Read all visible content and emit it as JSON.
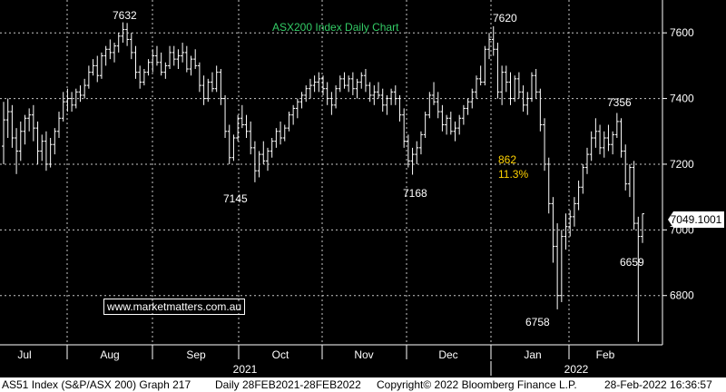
{
  "chart_data": {
    "type": "ohlc",
    "title": "ASX200 Index Daily Chart",
    "ylim": [
      6650,
      7700
    ],
    "yticks": [
      6800,
      7000,
      7200,
      7400,
      7600
    ],
    "x_months": [
      "Jul",
      "Aug",
      "Sep",
      "Oct",
      "Nov",
      "Dec",
      "Jan",
      "Feb"
    ],
    "x_years": [
      "2021",
      "2022"
    ],
    "grid": true,
    "last_price": "7049.1001",
    "annotations": [
      {
        "label": "7632",
        "value": 7632
      },
      {
        "label": "7145",
        "value": 7145
      },
      {
        "label": "7168",
        "value": 7168
      },
      {
        "label": "7620",
        "value": 7620
      },
      {
        "label": "862",
        "value": null
      },
      {
        "label": "11.3%",
        "value": null
      },
      {
        "label": "7356",
        "value": 7356
      },
      {
        "label": "6659",
        "value": 6659
      },
      {
        "label": "6758",
        "value": 6758
      }
    ],
    "series": [
      {
        "values": [
          [
            7255,
            7390,
            7200,
            7335
          ],
          [
            7335,
            7400,
            7280,
            7360
          ],
          [
            7360,
            7380,
            7250,
            7280
          ],
          [
            7280,
            7310,
            7170,
            7240
          ],
          [
            7240,
            7330,
            7210,
            7300
          ],
          [
            7300,
            7350,
            7260,
            7340
          ],
          [
            7340,
            7370,
            7300,
            7350
          ],
          [
            7350,
            7380,
            7270,
            7310
          ],
          [
            7310,
            7330,
            7200,
            7240
          ],
          [
            7240,
            7290,
            7210,
            7270
          ],
          [
            7270,
            7300,
            7180,
            7200
          ],
          [
            7200,
            7280,
            7190,
            7260
          ],
          [
            7260,
            7310,
            7230,
            7300
          ],
          [
            7300,
            7360,
            7280,
            7340
          ],
          [
            7340,
            7420,
            7330,
            7390
          ],
          [
            7390,
            7430,
            7360,
            7400
          ],
          [
            7400,
            7420,
            7360,
            7380
          ],
          [
            7380,
            7430,
            7370,
            7420
          ],
          [
            7420,
            7440,
            7390,
            7410
          ],
          [
            7410,
            7460,
            7400,
            7440
          ],
          [
            7440,
            7500,
            7430,
            7480
          ],
          [
            7480,
            7520,
            7470,
            7500
          ],
          [
            7500,
            7530,
            7450,
            7470
          ],
          [
            7470,
            7540,
            7460,
            7530
          ],
          [
            7530,
            7560,
            7500,
            7550
          ],
          [
            7550,
            7580,
            7520,
            7540
          ],
          [
            7540,
            7570,
            7510,
            7560
          ],
          [
            7560,
            7600,
            7540,
            7590
          ],
          [
            7590,
            7632,
            7570,
            7610
          ],
          [
            7610,
            7630,
            7560,
            7580
          ],
          [
            7580,
            7600,
            7520,
            7540
          ],
          [
            7540,
            7560,
            7460,
            7480
          ],
          [
            7480,
            7500,
            7430,
            7450
          ],
          [
            7450,
            7490,
            7440,
            7480
          ],
          [
            7480,
            7520,
            7470,
            7510
          ],
          [
            7510,
            7550,
            7480,
            7530
          ],
          [
            7530,
            7560,
            7500,
            7510
          ],
          [
            7510,
            7540,
            7470,
            7480
          ],
          [
            7480,
            7510,
            7460,
            7500
          ],
          [
            7500,
            7560,
            7490,
            7540
          ],
          [
            7540,
            7560,
            7500,
            7520
          ],
          [
            7520,
            7550,
            7490,
            7530
          ],
          [
            7530,
            7570,
            7510,
            7540
          ],
          [
            7540,
            7560,
            7480,
            7490
          ],
          [
            7490,
            7530,
            7470,
            7520
          ],
          [
            7520,
            7550,
            7490,
            7500
          ],
          [
            7500,
            7510,
            7420,
            7440
          ],
          [
            7440,
            7470,
            7380,
            7400
          ],
          [
            7400,
            7460,
            7390,
            7450
          ],
          [
            7450,
            7480,
            7420,
            7430
          ],
          [
            7430,
            7500,
            7420,
            7480
          ],
          [
            7480,
            7490,
            7380,
            7400
          ],
          [
            7400,
            7410,
            7280,
            7300
          ],
          [
            7300,
            7320,
            7200,
            7220
          ],
          [
            7220,
            7290,
            7210,
            7280
          ],
          [
            7280,
            7350,
            7270,
            7340
          ],
          [
            7340,
            7380,
            7310,
            7320
          ],
          [
            7320,
            7350,
            7280,
            7300
          ],
          [
            7300,
            7330,
            7230,
            7250
          ],
          [
            7250,
            7270,
            7145,
            7180
          ],
          [
            7180,
            7240,
            7160,
            7230
          ],
          [
            7230,
            7270,
            7200,
            7210
          ],
          [
            7210,
            7250,
            7180,
            7240
          ],
          [
            7240,
            7280,
            7220,
            7270
          ],
          [
            7270,
            7310,
            7250,
            7300
          ],
          [
            7300,
            7330,
            7260,
            7280
          ],
          [
            7280,
            7320,
            7270,
            7310
          ],
          [
            7310,
            7360,
            7300,
            7350
          ],
          [
            7350,
            7380,
            7320,
            7370
          ],
          [
            7370,
            7400,
            7340,
            7390
          ],
          [
            7390,
            7420,
            7370,
            7410
          ],
          [
            7410,
            7440,
            7390,
            7430
          ],
          [
            7430,
            7460,
            7400,
            7440
          ],
          [
            7440,
            7470,
            7420,
            7450
          ],
          [
            7450,
            7480,
            7420,
            7460
          ],
          [
            7460,
            7470,
            7410,
            7430
          ],
          [
            7430,
            7450,
            7380,
            7400
          ],
          [
            7400,
            7420,
            7350,
            7380
          ],
          [
            7380,
            7440,
            7370,
            7430
          ],
          [
            7430,
            7470,
            7420,
            7460
          ],
          [
            7460,
            7480,
            7430,
            7440
          ],
          [
            7440,
            7470,
            7420,
            7460
          ],
          [
            7460,
            7480,
            7410,
            7430
          ],
          [
            7430,
            7460,
            7400,
            7450
          ],
          [
            7450,
            7480,
            7430,
            7470
          ],
          [
            7470,
            7490,
            7420,
            7440
          ],
          [
            7440,
            7450,
            7390,
            7410
          ],
          [
            7410,
            7440,
            7380,
            7420
          ],
          [
            7420,
            7450,
            7400,
            7410
          ],
          [
            7410,
            7430,
            7360,
            7380
          ],
          [
            7380,
            7410,
            7350,
            7400
          ],
          [
            7400,
            7430,
            7380,
            7420
          ],
          [
            7420,
            7440,
            7380,
            7400
          ],
          [
            7400,
            7410,
            7330,
            7350
          ],
          [
            7350,
            7370,
            7250,
            7270
          ],
          [
            7270,
            7290,
            7190,
            7210
          ],
          [
            7210,
            7250,
            7168,
            7230
          ],
          [
            7230,
            7270,
            7200,
            7250
          ],
          [
            7250,
            7300,
            7230,
            7290
          ],
          [
            7290,
            7360,
            7280,
            7350
          ],
          [
            7350,
            7420,
            7340,
            7410
          ],
          [
            7410,
            7450,
            7380,
            7390
          ],
          [
            7390,
            7420,
            7340,
            7360
          ],
          [
            7360,
            7380,
            7300,
            7320
          ],
          [
            7320,
            7350,
            7290,
            7340
          ],
          [
            7340,
            7360,
            7290,
            7300
          ],
          [
            7300,
            7330,
            7270,
            7310
          ],
          [
            7310,
            7350,
            7290,
            7340
          ],
          [
            7340,
            7380,
            7320,
            7370
          ],
          [
            7370,
            7400,
            7350,
            7390
          ],
          [
            7390,
            7430,
            7370,
            7420
          ],
          [
            7420,
            7470,
            7400,
            7460
          ],
          [
            7460,
            7500,
            7440,
            7450
          ],
          [
            7450,
            7560,
            7440,
            7550
          ],
          [
            7550,
            7600,
            7520,
            7580
          ],
          [
            7580,
            7620,
            7530,
            7550
          ],
          [
            7550,
            7570,
            7400,
            7420
          ],
          [
            7420,
            7500,
            7380,
            7480
          ],
          [
            7480,
            7500,
            7420,
            7450
          ],
          [
            7450,
            7480,
            7380,
            7400
          ],
          [
            7400,
            7470,
            7390,
            7460
          ],
          [
            7460,
            7480,
            7400,
            7420
          ],
          [
            7420,
            7440,
            7360,
            7380
          ],
          [
            7380,
            7420,
            7350,
            7400
          ],
          [
            7400,
            7480,
            7390,
            7470
          ],
          [
            7470,
            7490,
            7400,
            7420
          ],
          [
            7420,
            7430,
            7300,
            7320
          ],
          [
            7320,
            7340,
            7180,
            7200
          ],
          [
            7200,
            7220,
            7050,
            7080
          ],
          [
            7080,
            7100,
            6900,
            6950
          ],
          [
            6950,
            7020,
            6758,
            6800
          ],
          [
            6800,
            7000,
            6780,
            6980
          ],
          [
            6980,
            7050,
            6940,
            7010
          ],
          [
            7010,
            7060,
            6980,
            7040
          ],
          [
            7040,
            7100,
            7010,
            7080
          ],
          [
            7080,
            7150,
            7060,
            7130
          ],
          [
            7130,
            7200,
            7110,
            7190
          ],
          [
            7190,
            7250,
            7170,
            7230
          ],
          [
            7230,
            7300,
            7210,
            7280
          ],
          [
            7280,
            7340,
            7250,
            7300
          ],
          [
            7300,
            7320,
            7230,
            7250
          ],
          [
            7250,
            7300,
            7220,
            7280
          ],
          [
            7280,
            7320,
            7240,
            7260
          ],
          [
            7260,
            7300,
            7230,
            7290
          ],
          [
            7290,
            7356,
            7280,
            7330
          ],
          [
            7330,
            7340,
            7220,
            7240
          ],
          [
            7240,
            7260,
            7120,
            7140
          ],
          [
            7140,
            7200,
            7100,
            7190
          ],
          [
            7190,
            7210,
            7000,
            7020
          ],
          [
            7020,
            7040,
            6659,
            6980
          ],
          [
            6980,
            7050,
            6960,
            7049
          ]
        ]
      }
    ]
  },
  "footer": {
    "left": "AS51 Index (S&P/ASX 200) Graph 217",
    "mid": "Daily 28FEB2021-28FEB2022",
    "right": "Copyright© 2022 Bloomberg Finance L.P.",
    "stamp": "28-Feb-2022 16:36:57"
  },
  "watermark": "www.marketmatters.com.au",
  "colors": {
    "background": "#000000",
    "grid": "#c8c8c8",
    "price_bars": "#ffffff",
    "title": "#33cc66",
    "yellow_annotations": "#ffd200"
  }
}
